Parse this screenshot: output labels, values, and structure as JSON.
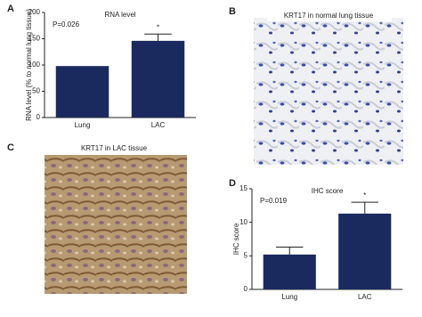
{
  "panel_labels": [
    "A",
    "B",
    "C",
    "D"
  ],
  "images": [
    {
      "caption": "KRT17 in normal lung tissue"
    },
    {
      "caption": "KRT17 in LAC tissue"
    }
  ],
  "chart_data": [
    {
      "type": "bar",
      "title": "RNA level",
      "y_label": "RNA level (% to normal lung tissue)",
      "annotation": "P=0.026",
      "significance": "*",
      "categories": [
        "Lung",
        "LAC"
      ],
      "values": [
        98,
        146
      ],
      "errors": [
        null,
        13
      ],
      "color": "#1b2a5e",
      "ylim": [
        0,
        200
      ],
      "yticks": [
        0,
        50,
        100,
        150,
        200
      ]
    },
    {
      "type": "bar",
      "title": "IHC score",
      "y_label": "IHC score",
      "annotation": "P=0.019",
      "significance": "*",
      "categories": [
        "Lung",
        "LAC"
      ],
      "values": [
        5.2,
        11.3
      ],
      "errors": [
        1.1,
        1.7
      ],
      "color": "#1b2a5e",
      "ylim": [
        0,
        15
      ],
      "yticks": [
        0,
        5,
        10,
        15
      ]
    }
  ]
}
